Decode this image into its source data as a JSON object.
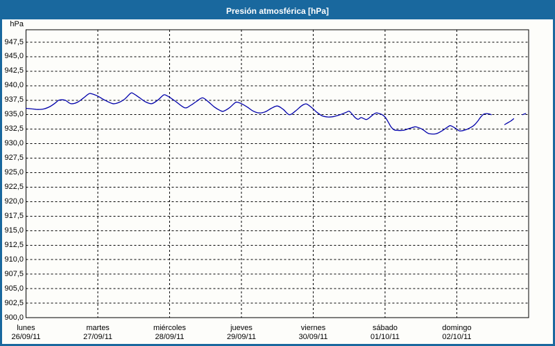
{
  "window": {
    "title": "Presión atmosférica [hPa]"
  },
  "colors": {
    "titlebar_bg": "#19689e",
    "window_border": "#19689e",
    "background": "#fdfdfa",
    "grid": "#000000",
    "frame": "#000000",
    "text": "#000000",
    "title_text": "#ffffff",
    "line": "#0000aa"
  },
  "chart_data": {
    "type": "line",
    "title": "Presión atmosférica [hPa]",
    "ylabel": "hPa",
    "xlabel": "",
    "ylim": [
      900,
      950
    ],
    "y_tick_step": 2.5,
    "grid": "dashed",
    "legend": "none",
    "y_ticks": [
      "947,5",
      "945,0",
      "942,5",
      "940,0",
      "937,5",
      "935,0",
      "932,5",
      "930,0",
      "927,5",
      "925,0",
      "922,5",
      "920,0",
      "917,5",
      "915,0",
      "912,5",
      "910,0",
      "907,5",
      "905,0",
      "902,5",
      "900,0"
    ],
    "x_ticks": [
      {
        "weekday": "lunes",
        "date": "26/09/11"
      },
      {
        "weekday": "martes",
        "date": "27/09/11"
      },
      {
        "weekday": "miércoles",
        "date": "28/09/11"
      },
      {
        "weekday": "jueves",
        "date": "29/09/11"
      },
      {
        "weekday": "viernes",
        "date": "30/09/11"
      },
      {
        "weekday": "sábado",
        "date": "01/10/11"
      },
      {
        "weekday": "domingo",
        "date": "02/10/11"
      }
    ],
    "x_range_hours": [
      0,
      168
    ],
    "hours_per_day": 24,
    "series": [
      {
        "name": "Presión atmosférica",
        "color": "#0000aa",
        "unit": "hPa",
        "points": [
          [
            0,
            936.1
          ],
          [
            2,
            936.0
          ],
          [
            4,
            935.9
          ],
          [
            6,
            936.0
          ],
          [
            8,
            936.4
          ],
          [
            10,
            937.1
          ],
          [
            11,
            937.5
          ],
          [
            13,
            937.5
          ],
          [
            15,
            936.9
          ],
          [
            17,
            937.1
          ],
          [
            19,
            937.8
          ],
          [
            21,
            938.6
          ],
          [
            22,
            938.6
          ],
          [
            24,
            938.2
          ],
          [
            26,
            937.6
          ],
          [
            29,
            936.9
          ],
          [
            31,
            937.1
          ],
          [
            33,
            937.7
          ],
          [
            35,
            938.7
          ],
          [
            36,
            938.6
          ],
          [
            38,
            937.9
          ],
          [
            40,
            937.2
          ],
          [
            42,
            936.9
          ],
          [
            44,
            937.5
          ],
          [
            46,
            938.4
          ],
          [
            47,
            938.3
          ],
          [
            48,
            938.0
          ],
          [
            50,
            937.3
          ],
          [
            53,
            936.2
          ],
          [
            55,
            936.6
          ],
          [
            57,
            937.3
          ],
          [
            59,
            937.9
          ],
          [
            61,
            937.2
          ],
          [
            63,
            936.3
          ],
          [
            65,
            935.7
          ],
          [
            66,
            935.6
          ],
          [
            68,
            936.2
          ],
          [
            70,
            937.1
          ],
          [
            71,
            937.1
          ],
          [
            72,
            936.9
          ],
          [
            74,
            936.3
          ],
          [
            76,
            935.6
          ],
          [
            78,
            935.3
          ],
          [
            80,
            935.5
          ],
          [
            82,
            936.1
          ],
          [
            84,
            936.5
          ],
          [
            86,
            935.9
          ],
          [
            88,
            935.0
          ],
          [
            90,
            935.6
          ],
          [
            92,
            936.5
          ],
          [
            93,
            936.8
          ],
          [
            94,
            936.8
          ],
          [
            96,
            936.0
          ],
          [
            97,
            935.5
          ],
          [
            99,
            934.8
          ],
          [
            101,
            934.6
          ],
          [
            103,
            934.7
          ],
          [
            105,
            935.0
          ],
          [
            107,
            935.4
          ],
          [
            108,
            935.6
          ],
          [
            109,
            935.1
          ],
          [
            110,
            934.5
          ],
          [
            111,
            934.2
          ],
          [
            112,
            934.5
          ],
          [
            113,
            934.3
          ],
          [
            114,
            934.2
          ],
          [
            116,
            935.0
          ],
          [
            117,
            935.3
          ],
          [
            118,
            935.2
          ],
          [
            119,
            935.0
          ],
          [
            120,
            934.6
          ],
          [
            121,
            933.8
          ],
          [
            122,
            932.9
          ],
          [
            123,
            932.4
          ],
          [
            124,
            932.3
          ],
          [
            126,
            932.3
          ],
          [
            128,
            932.6
          ],
          [
            130,
            932.9
          ],
          [
            131,
            932.8
          ],
          [
            132,
            932.6
          ],
          [
            133,
            932.3
          ],
          [
            134,
            931.9
          ],
          [
            135,
            931.7
          ],
          [
            137,
            931.7
          ],
          [
            139,
            932.2
          ],
          [
            141,
            932.9
          ],
          [
            142,
            933.1
          ],
          [
            144,
            932.5
          ],
          [
            145,
            932.2
          ],
          [
            147,
            932.4
          ],
          [
            149,
            932.9
          ],
          [
            150,
            933.3
          ],
          [
            151,
            933.9
          ],
          [
            152,
            934.6
          ],
          [
            153,
            935.1
          ],
          [
            154,
            935.2
          ],
          [
            155,
            935.1
          ],
          [
            155.5,
            935.0
          ],
          null,
          [
            160,
            933.3
          ],
          [
            161,
            933.6
          ],
          [
            162,
            933.9
          ],
          [
            163,
            934.3
          ],
          null,
          [
            166,
            935.0
          ],
          [
            167,
            935.2
          ]
        ]
      }
    ]
  }
}
